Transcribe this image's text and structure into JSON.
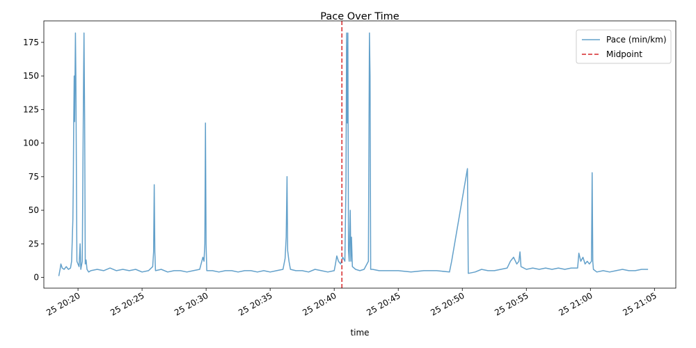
{
  "chart_data": {
    "type": "line",
    "title": "Pace Over Time",
    "xlabel": "time",
    "ylabel": "",
    "x_axis_kind": "time",
    "x_range": [
      "20:17:20",
      "21:06:40"
    ],
    "ylim": [
      -8,
      191
    ],
    "grid": false,
    "legend_position": "top-right",
    "x_ticks": [
      {
        "time": "20:20",
        "label": "25 20:20"
      },
      {
        "time": "20:25",
        "label": "25 20:25"
      },
      {
        "time": "20:30",
        "label": "25 20:30"
      },
      {
        "time": "20:35",
        "label": "25 20:35"
      },
      {
        "time": "20:40",
        "label": "25 20:40"
      },
      {
        "time": "20:45",
        "label": "25 20:45"
      },
      {
        "time": "20:50",
        "label": "25 20:50"
      },
      {
        "time": "20:55",
        "label": "25 20:55"
      },
      {
        "time": "21:00",
        "label": "25 21:00"
      },
      {
        "time": "21:05",
        "label": "25 21:05"
      }
    ],
    "y_ticks": [
      0,
      25,
      50,
      75,
      100,
      125,
      150,
      175
    ],
    "series": [
      {
        "name": "Pace (min/km)",
        "kind": "line",
        "color": "#1f77b4",
        "alpha": 0.7,
        "points": [
          [
            "20:18:30",
            1
          ],
          [
            "20:18:36",
            6
          ],
          [
            "20:18:40",
            10
          ],
          [
            "20:18:46",
            7
          ],
          [
            "20:18:55",
            6
          ],
          [
            "20:19:05",
            8
          ],
          [
            "20:19:15",
            6
          ],
          [
            "20:19:25",
            7
          ],
          [
            "20:19:30",
            12
          ],
          [
            "20:19:36",
            43
          ],
          [
            "20:19:38",
            70
          ],
          [
            "20:19:40",
            115
          ],
          [
            "20:19:42",
            150
          ],
          [
            "20:19:44",
            116
          ],
          [
            "20:19:48",
            182
          ],
          [
            "20:19:50",
            150
          ],
          [
            "20:19:55",
            12
          ],
          [
            "20:20:05",
            8
          ],
          [
            "20:20:10",
            25
          ],
          [
            "20:20:13",
            6
          ],
          [
            "20:20:20",
            12
          ],
          [
            "20:20:26",
            150
          ],
          [
            "20:20:28",
            182
          ],
          [
            "20:20:31",
            118
          ],
          [
            "20:20:34",
            10
          ],
          [
            "20:20:38",
            13
          ],
          [
            "20:20:42",
            6
          ],
          [
            "20:20:50",
            4
          ],
          [
            "20:21:00",
            5
          ],
          [
            "20:21:30",
            6
          ],
          [
            "20:22:00",
            5
          ],
          [
            "20:22:30",
            7
          ],
          [
            "20:23:00",
            5
          ],
          [
            "20:23:30",
            6
          ],
          [
            "20:24:00",
            5
          ],
          [
            "20:24:30",
            6
          ],
          [
            "20:25:00",
            4
          ],
          [
            "20:25:30",
            5
          ],
          [
            "20:25:50",
            8
          ],
          [
            "20:25:54",
            19
          ],
          [
            "20:25:57",
            69
          ],
          [
            "20:26:00",
            19
          ],
          [
            "20:26:03",
            5
          ],
          [
            "20:26:30",
            6
          ],
          [
            "20:27:00",
            4
          ],
          [
            "20:27:30",
            5
          ],
          [
            "20:28:00",
            5
          ],
          [
            "20:28:30",
            4
          ],
          [
            "20:29:00",
            5
          ],
          [
            "20:29:30",
            6
          ],
          [
            "20:29:45",
            15
          ],
          [
            "20:29:50",
            12
          ],
          [
            "20:29:54",
            25
          ],
          [
            "20:29:57",
            115
          ],
          [
            "20:30:00",
            25
          ],
          [
            "20:30:03",
            5
          ],
          [
            "20:30:30",
            5
          ],
          [
            "20:31:00",
            4
          ],
          [
            "20:31:30",
            5
          ],
          [
            "20:32:00",
            5
          ],
          [
            "20:32:30",
            4
          ],
          [
            "20:33:00",
            5
          ],
          [
            "20:33:30",
            5
          ],
          [
            "20:34:00",
            4
          ],
          [
            "20:34:30",
            5
          ],
          [
            "20:35:00",
            4
          ],
          [
            "20:35:30",
            5
          ],
          [
            "20:36:00",
            6
          ],
          [
            "20:36:10",
            14
          ],
          [
            "20:36:15",
            30
          ],
          [
            "20:36:19",
            75
          ],
          [
            "20:36:22",
            20
          ],
          [
            "20:36:28",
            12
          ],
          [
            "20:36:35",
            6
          ],
          [
            "20:37:00",
            5
          ],
          [
            "20:37:30",
            5
          ],
          [
            "20:38:00",
            4
          ],
          [
            "20:38:30",
            6
          ],
          [
            "20:39:00",
            5
          ],
          [
            "20:39:30",
            4
          ],
          [
            "20:40:00",
            5
          ],
          [
            "20:40:06",
            10
          ],
          [
            "20:40:12",
            16
          ],
          [
            "20:40:20",
            12
          ],
          [
            "20:40:30",
            10
          ],
          [
            "20:40:40",
            15
          ],
          [
            "20:40:50",
            12
          ],
          [
            "20:40:55",
            70
          ],
          [
            "20:40:58",
            182
          ],
          [
            "20:41:01",
            115
          ],
          [
            "20:41:04",
            182
          ],
          [
            "20:41:07",
            20
          ],
          [
            "20:41:10",
            12
          ],
          [
            "20:41:15",
            50
          ],
          [
            "20:41:18",
            12
          ],
          [
            "20:41:21",
            30
          ],
          [
            "20:41:25",
            8
          ],
          [
            "20:41:40",
            6
          ],
          [
            "20:42:00",
            5
          ],
          [
            "20:42:20",
            6
          ],
          [
            "20:42:40",
            12
          ],
          [
            "20:42:45",
            182
          ],
          [
            "20:42:48",
            150
          ],
          [
            "20:42:51",
            6
          ],
          [
            "20:43:00",
            6
          ],
          [
            "20:43:30",
            5
          ],
          [
            "20:44:00",
            5
          ],
          [
            "20:45:00",
            5
          ],
          [
            "20:46:00",
            4
          ],
          [
            "20:47:00",
            5
          ],
          [
            "20:48:00",
            5
          ],
          [
            "20:49:00",
            4
          ],
          [
            "20:49:10",
            12
          ],
          [
            "20:50:24",
            81
          ],
          [
            "20:50:28",
            3
          ],
          [
            "20:51:00",
            4
          ],
          [
            "20:51:30",
            6
          ],
          [
            "20:52:00",
            5
          ],
          [
            "20:52:30",
            5
          ],
          [
            "20:53:00",
            6
          ],
          [
            "20:53:30",
            7
          ],
          [
            "20:53:45",
            12
          ],
          [
            "20:54:00",
            15
          ],
          [
            "20:54:15",
            10
          ],
          [
            "20:54:25",
            12
          ],
          [
            "20:54:30",
            19
          ],
          [
            "20:54:35",
            8
          ],
          [
            "20:55:00",
            6
          ],
          [
            "20:55:30",
            7
          ],
          [
            "20:56:00",
            6
          ],
          [
            "20:56:30",
            7
          ],
          [
            "20:57:00",
            6
          ],
          [
            "20:57:30",
            7
          ],
          [
            "20:58:00",
            6
          ],
          [
            "20:58:30",
            7
          ],
          [
            "20:59:00",
            7
          ],
          [
            "20:59:06",
            18
          ],
          [
            "20:59:15",
            12
          ],
          [
            "20:59:25",
            15
          ],
          [
            "20:59:35",
            10
          ],
          [
            "20:59:45",
            12
          ],
          [
            "20:59:55",
            10
          ],
          [
            "21:00:05",
            12
          ],
          [
            "21:00:08",
            78
          ],
          [
            "21:00:11",
            12
          ],
          [
            "21:00:14",
            6
          ],
          [
            "21:00:30",
            4
          ],
          [
            "21:01:00",
            5
          ],
          [
            "21:01:30",
            4
          ],
          [
            "21:02:00",
            5
          ],
          [
            "21:02:30",
            6
          ],
          [
            "21:03:00",
            5
          ],
          [
            "21:03:30",
            5
          ],
          [
            "21:04:00",
            6
          ],
          [
            "21:04:30",
            6
          ]
        ]
      },
      {
        "name": "Midpoint",
        "kind": "vline",
        "color": "#d62728",
        "dash": true,
        "time": "20:40:36"
      }
    ]
  }
}
